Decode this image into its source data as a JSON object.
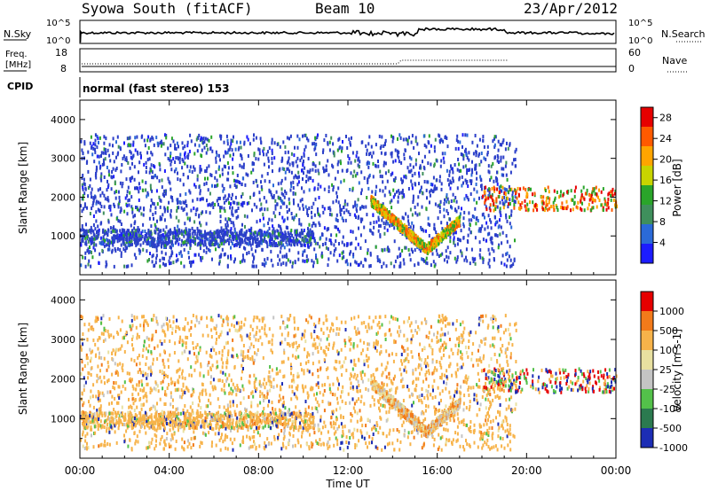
{
  "header": {
    "radar": "Syowa South (fitACF)",
    "beam": "Beam 10",
    "date": "23/Apr/2012"
  },
  "noise_panel": {
    "left_label": "N.Sky",
    "left_ticks": [
      "10^5",
      "10^0"
    ],
    "right_ticks": [
      "10^5",
      "10^0"
    ],
    "right_label": "N.Search"
  },
  "freq_panel": {
    "left_label_1": "Freq.",
    "left_label_2": "[MHz]",
    "left_ticks": [
      "18",
      "8"
    ],
    "right_ticks": [
      "60",
      "0"
    ],
    "right_label": "Nave"
  },
  "cpid_panel": {
    "label": "CPID",
    "mode": "normal (fast stereo) 153"
  },
  "chart_data": [
    {
      "type": "heatmap",
      "title": "Power",
      "ylabel": "Slant Range [km]",
      "ylim": [
        0,
        4500
      ],
      "yticks": [
        "1000",
        "2000",
        "3000",
        "4000"
      ],
      "xlim_hours": [
        0,
        24
      ],
      "colorbar": {
        "label": "Power [dB]",
        "ticks": [
          "4",
          "8",
          "12",
          "16",
          "20",
          "24",
          "28"
        ],
        "colors": [
          "#1c1cff",
          "#2b6ad8",
          "#3f8f5c",
          "#2aa52a",
          "#c8d400",
          "#ffa500",
          "#ff5a00",
          "#e60000"
        ],
        "range": [
          0,
          30
        ]
      }
    },
    {
      "type": "heatmap",
      "title": "Velocity",
      "ylabel": "Slant Range [km]",
      "ylim": [
        0,
        4500
      ],
      "yticks": [
        "1000",
        "2000",
        "3000",
        "4000"
      ],
      "xlim_hours": [
        0,
        24
      ],
      "colorbar": {
        "label": "Velocity [m s-1]",
        "ticks": [
          "1000",
          "500",
          "100",
          "25",
          "-25",
          "-100",
          "-500",
          "-1000"
        ],
        "colors": [
          "#1c2db5",
          "#2b7a4f",
          "#53c14a",
          "#c4c4c4",
          "#e8e0a0",
          "#f7b34a",
          "#f27a1a",
          "#e60000"
        ]
      }
    }
  ],
  "xaxis": {
    "ticks": [
      "00:00",
      "04:00",
      "08:00",
      "12:00",
      "16:00",
      "20:00",
      "00:00"
    ],
    "label": "Time UT"
  }
}
